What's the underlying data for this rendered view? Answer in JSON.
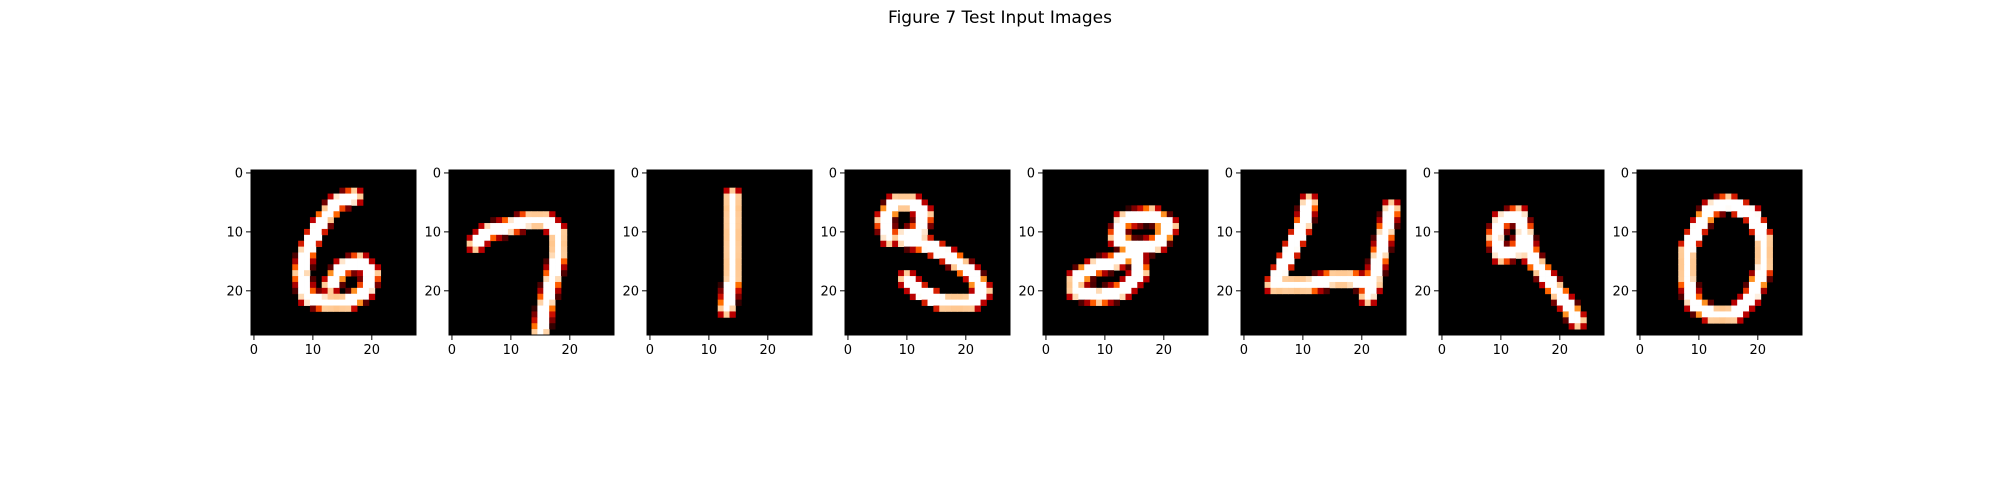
{
  "title": "Figure 7 Test Input Images",
  "chart_data": {
    "type": "heatmap",
    "colormap": "gist_heat",
    "background_color": "#000000",
    "stroke_colors": [
      "#8b0000",
      "#d23c00",
      "#ff7f00",
      "#ffc040",
      "#ffffff"
    ],
    "image_size": [
      28,
      28
    ],
    "x_tick_values": [
      0,
      10,
      20
    ],
    "y_tick_values": [
      0,
      10,
      20
    ],
    "x_tick_labels": [
      "0",
      "10",
      "20"
    ],
    "y_tick_labels": [
      "0",
      "10",
      "20"
    ],
    "images": [
      {
        "digit": "6",
        "strokes": [
          [
            [
              17,
              4
            ],
            [
              14,
              5
            ],
            [
              11,
              9
            ],
            [
              9,
              13
            ],
            [
              8,
              17
            ],
            [
              9,
              21
            ],
            [
              12,
              22
            ],
            [
              16,
              22
            ],
            [
              19,
              20
            ],
            [
              20,
              17
            ],
            [
              18,
              15
            ],
            [
              15,
              16
            ],
            [
              13,
              19
            ]
          ]
        ]
      },
      {
        "digit": "7",
        "strokes": [
          [
            [
              4,
              12
            ],
            [
              6,
              10
            ],
            [
              10,
              9
            ],
            [
              13,
              8
            ],
            [
              16,
              8
            ],
            [
              18,
              10
            ],
            [
              18,
              14
            ],
            [
              17,
              18
            ],
            [
              16,
              22
            ],
            [
              15,
              27
            ]
          ]
        ]
      },
      {
        "digit": "1",
        "strokes": [
          [
            [
              14,
              4
            ],
            [
              14,
              8
            ],
            [
              14,
              13
            ],
            [
              14,
              18
            ],
            [
              13,
              23
            ]
          ]
        ]
      },
      {
        "digit": "3",
        "strokes": [
          [
            [
              7,
              11
            ],
            [
              6,
              8
            ],
            [
              8,
              5
            ],
            [
              11,
              5
            ],
            [
              13,
              7
            ],
            [
              12,
              10
            ],
            [
              9,
              11
            ],
            [
              13,
              12
            ],
            [
              17,
              14
            ],
            [
              21,
              17
            ],
            [
              23,
              20
            ],
            [
              21,
              22
            ],
            [
              16,
              22
            ],
            [
              12,
              20
            ],
            [
              10,
              18
            ]
          ]
        ]
      },
      {
        "digit": "8",
        "strokes": [
          [
            [
              21,
              9
            ],
            [
              18,
              7
            ],
            [
              13,
              8
            ],
            [
              12,
              11
            ],
            [
              15,
              13
            ],
            [
              19,
              12
            ],
            [
              21,
              9
            ]
          ],
          [
            [
              15,
              13
            ],
            [
              12,
              15
            ],
            [
              8,
              16
            ],
            [
              5,
              18
            ],
            [
              5,
              20
            ],
            [
              9,
              21
            ],
            [
              13,
              20
            ],
            [
              16,
              17
            ],
            [
              15,
              13
            ]
          ]
        ]
      },
      {
        "digit": "4",
        "strokes": [
          [
            [
              11,
              5
            ],
            [
              10,
              9
            ],
            [
              8,
              13
            ],
            [
              6,
              17
            ],
            [
              5,
              19
            ],
            [
              7,
              19
            ],
            [
              11,
              19
            ],
            [
              15,
              18
            ],
            [
              18,
              18
            ],
            [
              22,
              19
            ]
          ],
          [
            [
              25,
              6
            ],
            [
              24,
              10
            ],
            [
              23,
              14
            ],
            [
              22,
              18
            ],
            [
              21,
              21
            ]
          ]
        ]
      },
      {
        "digit": "9",
        "strokes": [
          [
            [
              13,
              7
            ],
            [
              10,
              8
            ],
            [
              9,
              11
            ],
            [
              10,
              14
            ],
            [
              13,
              13
            ],
            [
              14,
              10
            ],
            [
              13,
              7
            ]
          ],
          [
            [
              14,
              10
            ],
            [
              15,
              14
            ],
            [
              18,
              18
            ],
            [
              21,
              22
            ],
            [
              23,
              25
            ]
          ]
        ]
      },
      {
        "digit": "0",
        "strokes": [
          [
            [
              15,
              5
            ],
            [
              12,
              6
            ],
            [
              10,
              9
            ],
            [
              8,
              13
            ],
            [
              8,
              18
            ],
            [
              9,
              22
            ],
            [
              12,
              24
            ],
            [
              16,
              24
            ],
            [
              19,
              21
            ],
            [
              21,
              16
            ],
            [
              21,
              11
            ],
            [
              19,
              7
            ],
            [
              15,
              5
            ]
          ]
        ]
      }
    ]
  }
}
